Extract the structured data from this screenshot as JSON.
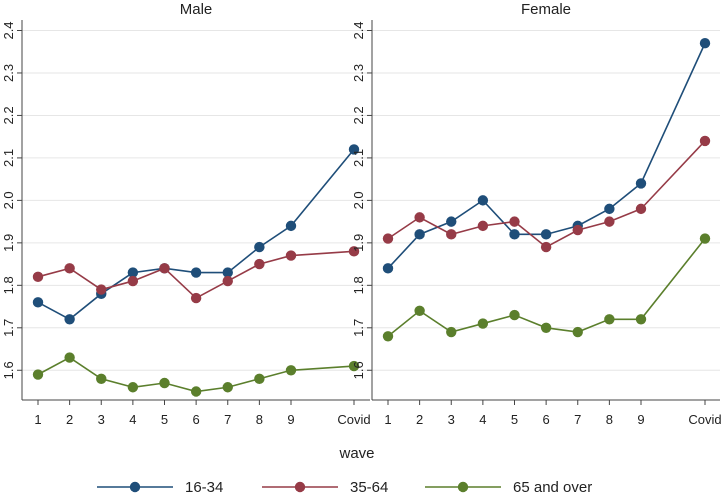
{
  "chart_data": {
    "type": "line",
    "x_categories": [
      "1",
      "2",
      "3",
      "4",
      "5",
      "6",
      "7",
      "8",
      "9",
      "Covid"
    ],
    "xlabel": "wave",
    "ylabel": "",
    "ylim": [
      1.53,
      2.42
    ],
    "yticks": [
      "1.6",
      "1.7",
      "1.8",
      "1.9",
      "2.0",
      "2.1",
      "2.2",
      "2.3",
      "2.4"
    ],
    "grid": true,
    "legend_position": "bottom",
    "series_meta": [
      {
        "name": "16-34",
        "color": "#1f4e79"
      },
      {
        "name": "35-64",
        "color": "#963b47"
      },
      {
        "name": "65 and over",
        "color": "#5b7f2c"
      }
    ],
    "panels": [
      {
        "title": "Male",
        "series": [
          {
            "name": "16-34",
            "values": [
              1.76,
              1.72,
              1.78,
              1.83,
              1.84,
              1.83,
              1.83,
              1.89,
              1.94,
              2.12
            ]
          },
          {
            "name": "35-64",
            "values": [
              1.82,
              1.84,
              1.79,
              1.81,
              1.84,
              1.77,
              1.81,
              1.85,
              1.87,
              1.88
            ]
          },
          {
            "name": "65 and over",
            "values": [
              1.59,
              1.63,
              1.58,
              1.56,
              1.57,
              1.55,
              1.56,
              1.58,
              1.6,
              1.61
            ]
          }
        ]
      },
      {
        "title": "Female",
        "series": [
          {
            "name": "16-34",
            "values": [
              1.84,
              1.92,
              1.95,
              2.0,
              1.92,
              1.92,
              1.94,
              1.98,
              2.04,
              2.37
            ]
          },
          {
            "name": "35-64",
            "values": [
              1.91,
              1.96,
              1.92,
              1.94,
              1.95,
              1.89,
              1.93,
              1.95,
              1.98,
              2.14
            ]
          },
          {
            "name": "65 and over",
            "values": [
              1.68,
              1.74,
              1.69,
              1.71,
              1.73,
              1.7,
              1.69,
              1.72,
              1.72,
              1.91
            ]
          }
        ]
      }
    ]
  }
}
